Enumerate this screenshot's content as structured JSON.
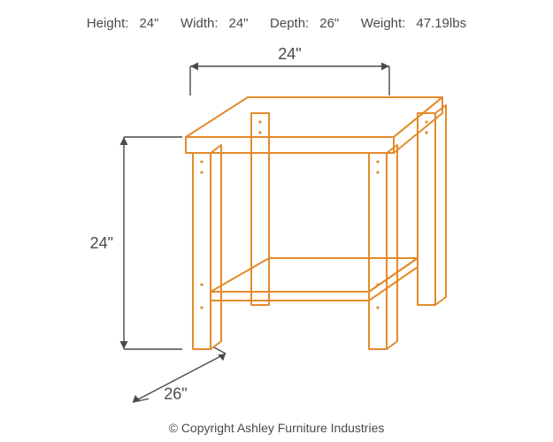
{
  "specs": {
    "height_label": "Height:",
    "height_value": "24\"",
    "width_label": "Width:",
    "width_value": "24\"",
    "depth_label": "Depth:",
    "depth_value": "26\"",
    "weight_label": "Weight:",
    "weight_value": "47.19lbs"
  },
  "dimensions": {
    "width": "24\"",
    "height": "24\"",
    "depth": "26\""
  },
  "copyright": "© Copyright Ashley Furniture Industries",
  "style": {
    "table_stroke": "#e38b2c",
    "table_stroke_width": 2,
    "dim_stroke": "#4a4a4a",
    "dim_stroke_width": 1.4,
    "dim_text_color": "#4a4a4a",
    "dim_fontsize": 18,
    "spec_fontsize": 15,
    "arrow_size": 9,
    "background": "#ffffff"
  }
}
